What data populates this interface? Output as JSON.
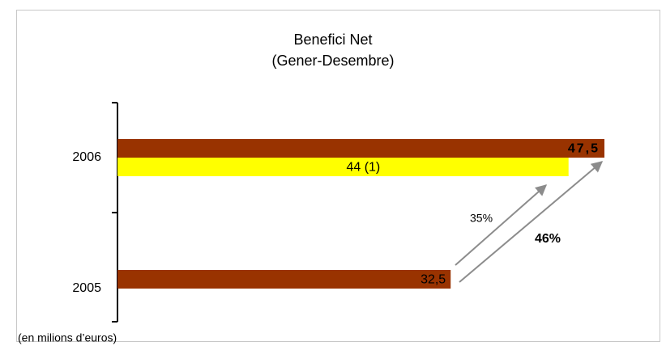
{
  "chart_data": {
    "type": "hbar",
    "title": "Benefici Net",
    "subtitle": "(Gener-Desembre)",
    "categories": [
      "2006",
      "2005"
    ],
    "series": [
      {
        "color": "#993300",
        "values": [
          47.5,
          32.5
        ],
        "value_labels": [
          "47,5",
          "32,5"
        ]
      },
      {
        "color": "#ffff00",
        "values": [
          44,
          null
        ],
        "value_labels": [
          "44 (1)",
          null
        ]
      }
    ],
    "annotations": [
      "35%",
      "46%"
    ],
    "note": "(en milions d’euros)"
  }
}
